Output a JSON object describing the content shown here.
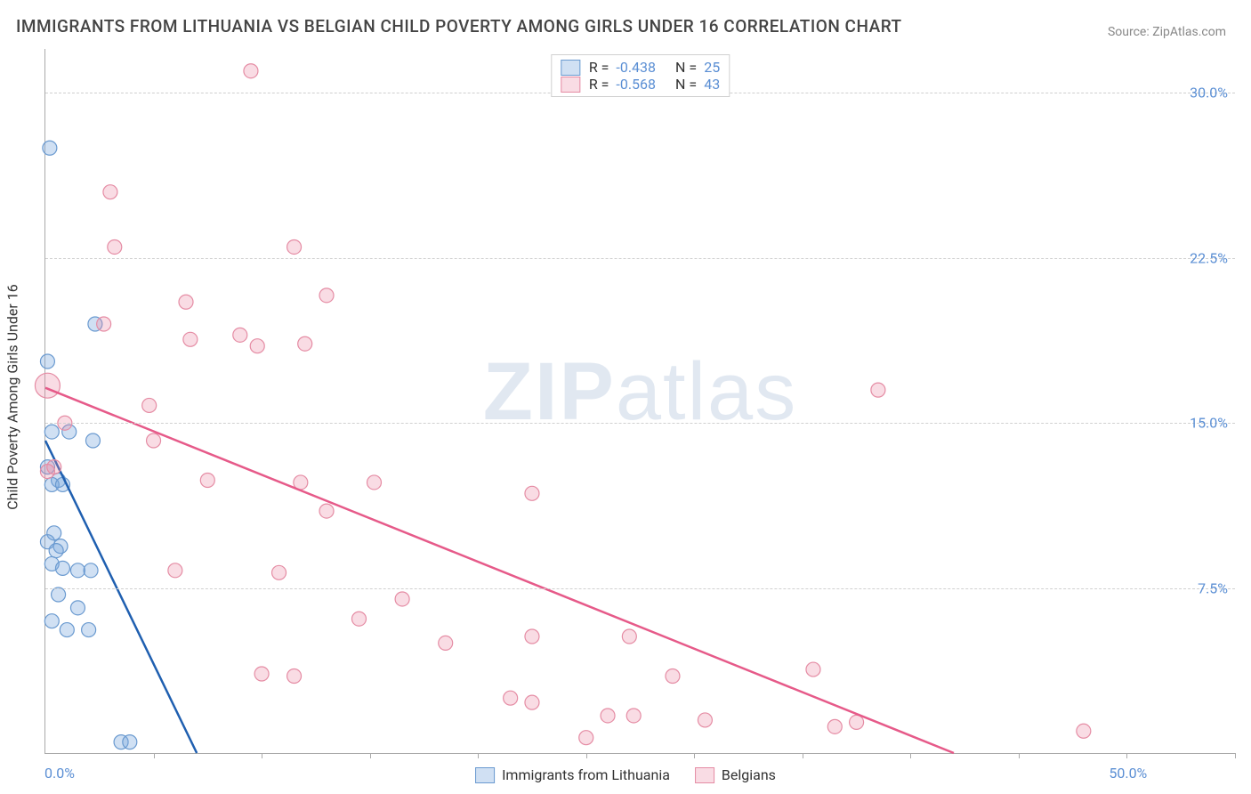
{
  "title": "IMMIGRANTS FROM LITHUANIA VS BELGIAN CHILD POVERTY AMONG GIRLS UNDER 16 CORRELATION CHART",
  "source_prefix": "Source: ",
  "source_name": "ZipAtlas.com",
  "watermark": {
    "bold": "ZIP",
    "light": "atlas"
  },
  "chart": {
    "type": "scatter",
    "ylabel": "Child Poverty Among Girls Under 16",
    "xlim": [
      0,
      55
    ],
    "ylim": [
      0,
      32
    ],
    "yticks": [
      {
        "value": 7.5,
        "label": "7.5%"
      },
      {
        "value": 15.0,
        "label": "15.0%"
      },
      {
        "value": 22.5,
        "label": "22.5%"
      },
      {
        "value": 30.0,
        "label": "30.0%"
      }
    ],
    "xticks_minor_step": 5,
    "xtick_labels": [
      {
        "value": 0,
        "label": "0.0%"
      },
      {
        "value": 50,
        "label": "50.0%"
      }
    ],
    "background_color": "#ffffff",
    "grid_color": "#d0d0d0",
    "axis_color": "#aaaaaa",
    "tick_label_color": "#5b8fd4",
    "marker_radius": 8,
    "marker_radius_large": 14,
    "line_width": 2.5,
    "series": [
      {
        "name": "Immigrants from Lithuania",
        "color_fill": "rgba(120,165,220,0.35)",
        "color_stroke": "#6a9ad0",
        "trend_color": "#1f5fb0",
        "R": "-0.438",
        "N": "25",
        "trend": {
          "x1": 0,
          "y1": 14.2,
          "x2": 7,
          "y2": 0
        },
        "points": [
          {
            "x": 0.2,
            "y": 27.5
          },
          {
            "x": 2.3,
            "y": 19.5
          },
          {
            "x": 0.1,
            "y": 17.8
          },
          {
            "x": 0.3,
            "y": 14.6
          },
          {
            "x": 1.1,
            "y": 14.6
          },
          {
            "x": 2.2,
            "y": 14.2
          },
          {
            "x": 0.1,
            "y": 13.0
          },
          {
            "x": 0.6,
            "y": 12.4
          },
          {
            "x": 0.3,
            "y": 12.2
          },
          {
            "x": 0.8,
            "y": 12.2
          },
          {
            "x": 0.4,
            "y": 10.0
          },
          {
            "x": 0.1,
            "y": 9.6
          },
          {
            "x": 0.7,
            "y": 9.4
          },
          {
            "x": 0.5,
            "y": 9.2
          },
          {
            "x": 0.3,
            "y": 8.6
          },
          {
            "x": 0.8,
            "y": 8.4
          },
          {
            "x": 1.5,
            "y": 8.3
          },
          {
            "x": 2.1,
            "y": 8.3
          },
          {
            "x": 0.6,
            "y": 7.2
          },
          {
            "x": 1.5,
            "y": 6.6
          },
          {
            "x": 0.3,
            "y": 6.0
          },
          {
            "x": 1.0,
            "y": 5.6
          },
          {
            "x": 2.0,
            "y": 5.6
          },
          {
            "x": 3.5,
            "y": 0.5
          },
          {
            "x": 3.9,
            "y": 0.5
          }
        ]
      },
      {
        "name": "Belgians",
        "color_fill": "rgba(235,140,165,0.30)",
        "color_stroke": "#e58ca4",
        "trend_color": "#e65a89",
        "R": "-0.568",
        "N": "43",
        "trend": {
          "x1": 0,
          "y1": 16.6,
          "x2": 42,
          "y2": 0
        },
        "points": [
          {
            "x": 9.5,
            "y": 31.0
          },
          {
            "x": 3.0,
            "y": 25.5
          },
          {
            "x": 3.2,
            "y": 23.0
          },
          {
            "x": 11.5,
            "y": 23.0
          },
          {
            "x": 6.5,
            "y": 20.5
          },
          {
            "x": 13.0,
            "y": 20.8
          },
          {
            "x": 2.7,
            "y": 19.5
          },
          {
            "x": 6.7,
            "y": 18.8
          },
          {
            "x": 9.0,
            "y": 19.0
          },
          {
            "x": 9.8,
            "y": 18.5
          },
          {
            "x": 12.0,
            "y": 18.6
          },
          {
            "x": 0.1,
            "y": 16.7,
            "r": 14
          },
          {
            "x": 38.5,
            "y": 16.5
          },
          {
            "x": 4.8,
            "y": 15.8
          },
          {
            "x": 0.9,
            "y": 15.0
          },
          {
            "x": 5.0,
            "y": 14.2
          },
          {
            "x": 0.4,
            "y": 13.0
          },
          {
            "x": 0.1,
            "y": 12.8
          },
          {
            "x": 7.5,
            "y": 12.4
          },
          {
            "x": 11.8,
            "y": 12.3
          },
          {
            "x": 15.2,
            "y": 12.3
          },
          {
            "x": 22.5,
            "y": 11.8
          },
          {
            "x": 13.0,
            "y": 11.0
          },
          {
            "x": 6.0,
            "y": 8.3
          },
          {
            "x": 10.8,
            "y": 8.2
          },
          {
            "x": 16.5,
            "y": 7.0
          },
          {
            "x": 14.5,
            "y": 6.1
          },
          {
            "x": 18.5,
            "y": 5.0
          },
          {
            "x": 22.5,
            "y": 5.3
          },
          {
            "x": 27.0,
            "y": 5.3
          },
          {
            "x": 10.0,
            "y": 3.6
          },
          {
            "x": 11.5,
            "y": 3.5
          },
          {
            "x": 29.0,
            "y": 3.5
          },
          {
            "x": 35.5,
            "y": 3.8
          },
          {
            "x": 21.5,
            "y": 2.5
          },
          {
            "x": 22.5,
            "y": 2.3
          },
          {
            "x": 26.0,
            "y": 1.7
          },
          {
            "x": 27.2,
            "y": 1.7
          },
          {
            "x": 30.5,
            "y": 1.5
          },
          {
            "x": 36.5,
            "y": 1.2
          },
          {
            "x": 37.5,
            "y": 1.4
          },
          {
            "x": 48.0,
            "y": 1.0
          },
          {
            "x": 25.0,
            "y": 0.7
          }
        ]
      }
    ]
  }
}
